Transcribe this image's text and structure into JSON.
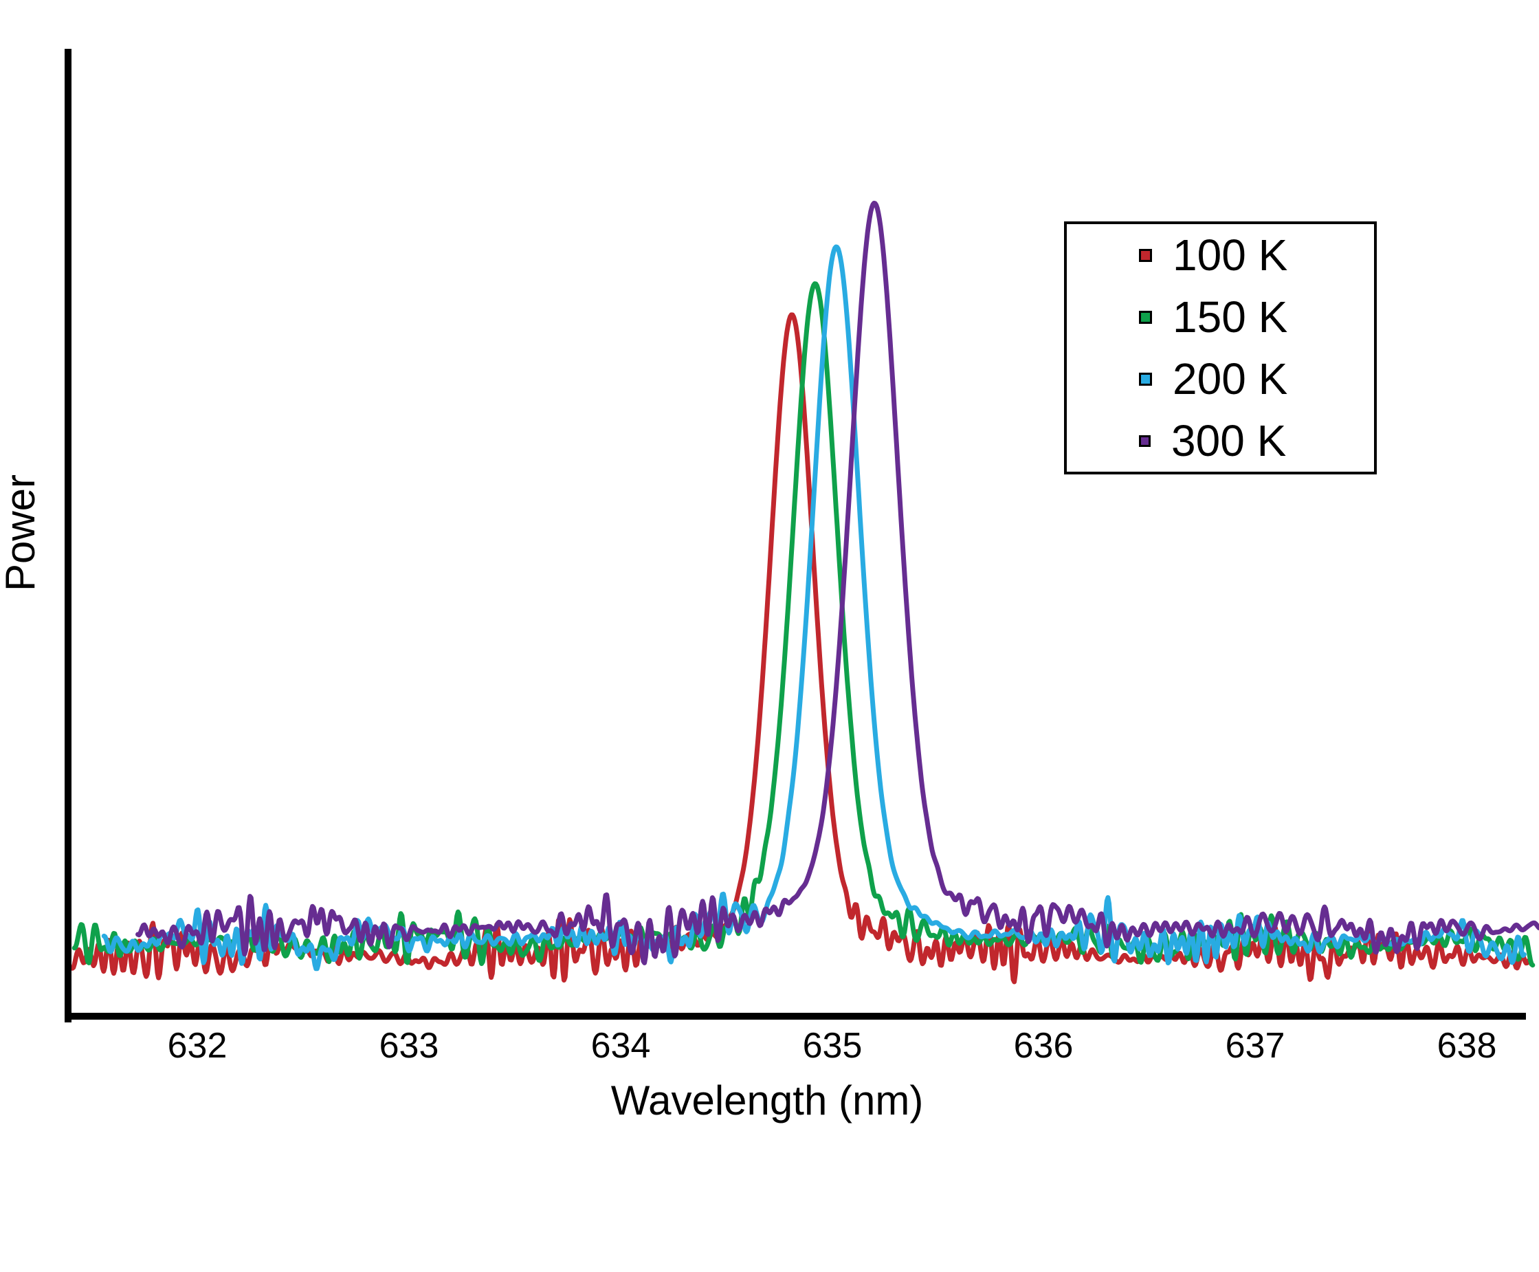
{
  "figure": {
    "background_color": "#FFFFFF",
    "axis_color": "#000000"
  },
  "chart_data": {
    "type": "line",
    "title": "",
    "xlabel": "Wavelength (nm)",
    "ylabel": "Power",
    "xlim": [
      631.39,
      638.34
    ],
    "ylim": [
      0,
      1
    ],
    "x_ticks": [
      "632",
      "633",
      "634",
      "635",
      "636",
      "637",
      "638"
    ],
    "y_ticks": [],
    "grid": false,
    "legend_position": "upper right",
    "description": "Laser emission spectra at four temperatures: narrow peak near 635 nm rides on a noisy baseline; peak wavelength and power increase with temperature.",
    "series": [
      {
        "name": "100 K",
        "color": "#C1272D",
        "peak_center_nm": 634.81,
        "peak_value": 0.726,
        "baseline_value": 0.065,
        "fwhm_nm": 0.25,
        "x_start_nm": 631.41,
        "x_end_nm": 638.29,
        "noise_amplitude": 0.045,
        "noise_seed": 7
      },
      {
        "name": "150 K",
        "color": "#0FA14B",
        "peak_center_nm": 634.92,
        "peak_value": 0.758,
        "baseline_value": 0.078,
        "fwhm_nm": 0.26,
        "x_start_nm": 631.42,
        "x_end_nm": 638.31,
        "noise_amplitude": 0.043,
        "noise_seed": 13
      },
      {
        "name": "200 K",
        "color": "#29ABE2",
        "peak_center_nm": 635.02,
        "peak_value": 0.796,
        "baseline_value": 0.081,
        "fwhm_nm": 0.27,
        "x_start_nm": 631.56,
        "x_end_nm": 638.27,
        "noise_amplitude": 0.042,
        "noise_seed": 21
      },
      {
        "name": "300 K",
        "color": "#662D91",
        "peak_center_nm": 635.2,
        "peak_value": 0.841,
        "baseline_value": 0.092,
        "fwhm_nm": 0.28,
        "x_start_nm": 631.72,
        "x_end_nm": 638.34,
        "noise_amplitude": 0.04,
        "noise_seed": 5
      }
    ]
  },
  "legend": {
    "items": [
      {
        "label": "100 K",
        "color": "#C1272D"
      },
      {
        "label": "150 K",
        "color": "#0FA14B"
      },
      {
        "label": "200 K",
        "color": "#29ABE2"
      },
      {
        "label": "300 K",
        "color": "#662D91"
      }
    ]
  }
}
